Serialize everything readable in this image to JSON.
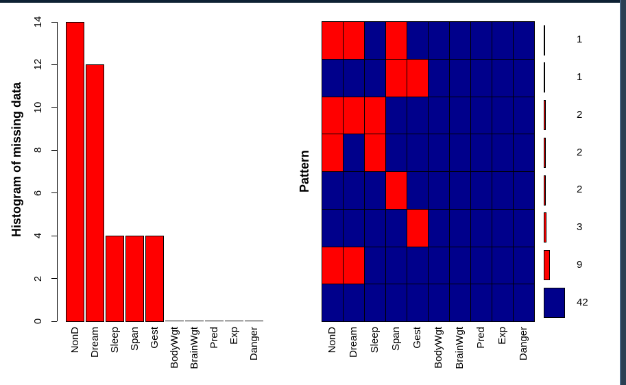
{
  "window": {
    "top_border_color": "#0d2133",
    "right_border_color": "#2b4053",
    "right_border_edge_color": "#476582",
    "background": "#ffffff"
  },
  "chart_data": [
    {
      "type": "bar",
      "title": "",
      "ylabel": "Histogram of missing data",
      "xlabel": "",
      "categories": [
        "NonD",
        "Dream",
        "Sleep",
        "Span",
        "Gest",
        "BodyWgt",
        "BrainWgt",
        "Pred",
        "Exp",
        "Danger"
      ],
      "values": [
        14,
        12,
        4,
        4,
        4,
        0,
        0,
        0,
        0,
        0
      ],
      "yticks": [
        0,
        2,
        4,
        6,
        8,
        10,
        12,
        14
      ],
      "ylim": [
        0,
        14
      ],
      "grid": false,
      "legend_position": "none",
      "bar_color": "#ff0000",
      "bar_border_color": "#000000",
      "axis_color": "#000000",
      "tick_label_rotation": "vertical",
      "x_label_rotation": "vertical"
    },
    {
      "type": "heatmap",
      "title": "",
      "ylabel": "Pattern",
      "xlabel": "",
      "categories": [
        "NonD",
        "Dream",
        "Sleep",
        "Span",
        "Gest",
        "BodyWgt",
        "BrainWgt",
        "Pred",
        "Exp",
        "Danger"
      ],
      "legend_position": "right",
      "cell_colors": {
        "missing": "#ff0000",
        "observed": "#00008b",
        "grid_line": "#000000"
      },
      "rows": [
        {
          "pattern": [
            1,
            1,
            0,
            1,
            0,
            0,
            0,
            0,
            0,
            0
          ],
          "count": 1
        },
        {
          "pattern": [
            0,
            0,
            0,
            1,
            1,
            0,
            0,
            0,
            0,
            0
          ],
          "count": 1
        },
        {
          "pattern": [
            1,
            1,
            1,
            0,
            0,
            0,
            0,
            0,
            0,
            0
          ],
          "count": 2
        },
        {
          "pattern": [
            1,
            0,
            1,
            0,
            0,
            0,
            0,
            0,
            0,
            0
          ],
          "count": 2
        },
        {
          "pattern": [
            0,
            0,
            0,
            1,
            0,
            0,
            0,
            0,
            0,
            0
          ],
          "count": 2
        },
        {
          "pattern": [
            0,
            0,
            0,
            0,
            1,
            0,
            0,
            0,
            0,
            0
          ],
          "count": 3
        },
        {
          "pattern": [
            1,
            1,
            0,
            0,
            0,
            0,
            0,
            0,
            0,
            0
          ],
          "count": 9
        },
        {
          "pattern": [
            0,
            0,
            0,
            0,
            0,
            0,
            0,
            0,
            0,
            0
          ],
          "count": 42
        }
      ]
    }
  ]
}
